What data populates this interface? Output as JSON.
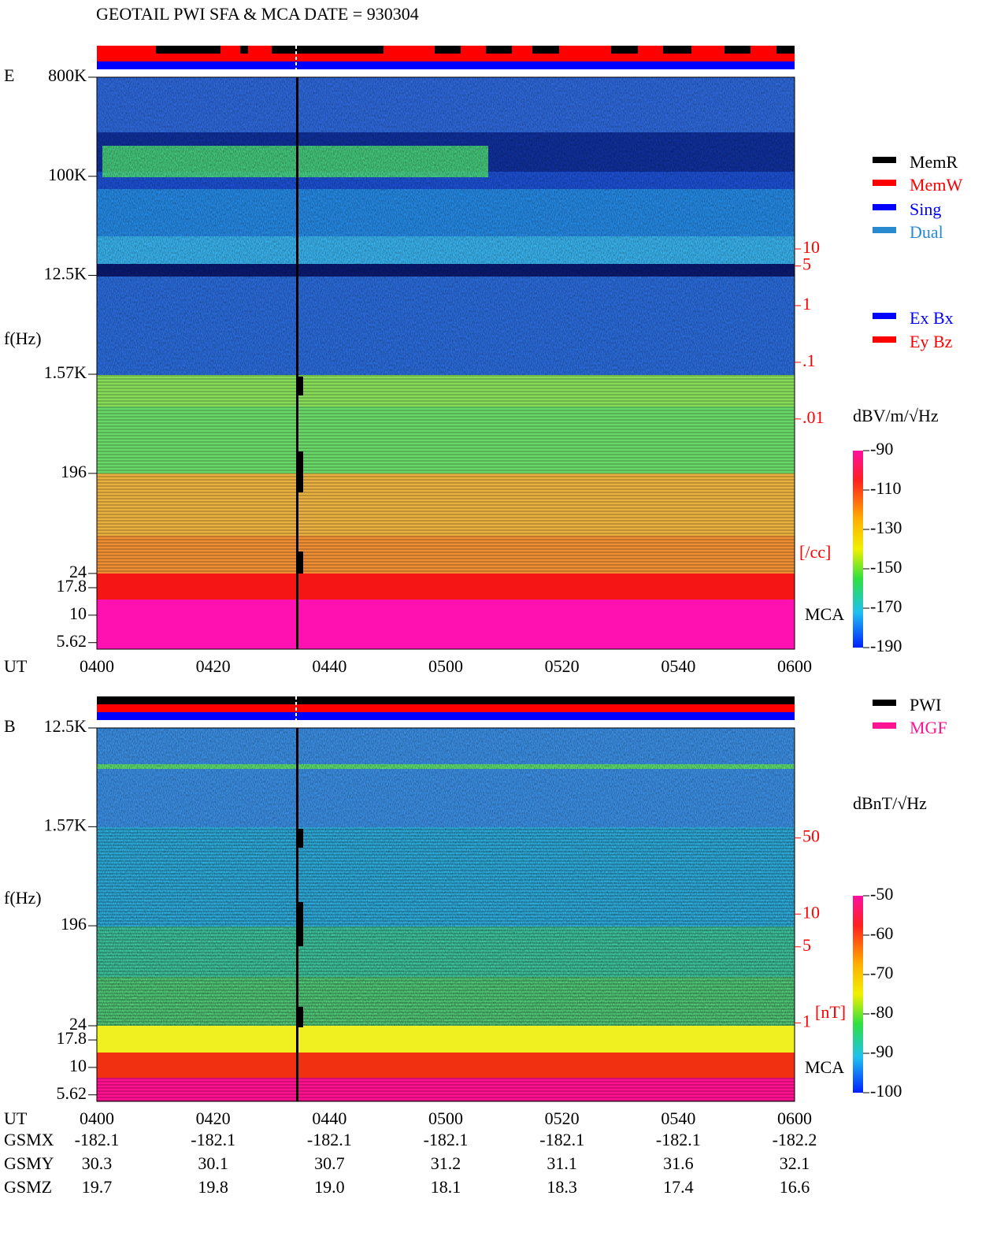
{
  "chart_data": [
    {
      "type": "spectrogram",
      "title": "GEOTAIL  PWI SFA & MCA   DATE = 930304",
      "panel_label": "E",
      "y_label": "f(Hz)",
      "x_label": "UT",
      "log_y": true,
      "ylim": [
        4.9,
        800000
      ],
      "yticks": [
        {
          "value": 800000,
          "label": "800K"
        },
        {
          "value": 100000,
          "label": "100K"
        },
        {
          "value": 12500,
          "label": "12.5K"
        },
        {
          "value": 1570,
          "label": "1.57K"
        },
        196,
        24,
        17.8,
        10,
        5.62
      ],
      "xticks": [
        "0400",
        "0420",
        "0440",
        "0500",
        "0520",
        "0540",
        "0600"
      ],
      "y2lim": [
        8.7e-07,
        10700
      ],
      "y2ticks": [
        10,
        5,
        1,
        {
          "value": 0.1,
          "label": ".1"
        },
        {
          "value": 0.01,
          "label": ".01"
        }
      ],
      "y2_label": "[/cc]",
      "mca_label": "MCA",
      "legend": [
        {
          "name": "MemR",
          "color": "#000000"
        },
        {
          "name": "MemW",
          "color": "#ff0000"
        },
        {
          "name": "Sing",
          "color": "#0000ff"
        },
        {
          "name": "Dual",
          "color": "#2a8ad0"
        }
      ],
      "legend2": [
        {
          "name": "Ex Bx",
          "color": "#0000ff"
        },
        {
          "name": "Ey Bz",
          "color": "#ff0000"
        }
      ],
      "colorbar": {
        "label": "dBV/m/√Hz",
        "lim": [
          -190,
          -90
        ],
        "ticks": [
          -90,
          -110,
          -130,
          -150,
          -170,
          -190
        ]
      }
    },
    {
      "type": "spectrogram",
      "panel_label": "B",
      "y_label": "f(Hz)",
      "x_label": "UT",
      "log_y": true,
      "ylim": [
        4.9,
        12500
      ],
      "yticks": [
        {
          "value": 12500,
          "label": "12.5K"
        },
        {
          "value": 1570,
          "label": "1.57K"
        },
        196,
        24,
        17.8,
        10,
        5.62
      ],
      "xticks": [
        "0400",
        "0420",
        "0440",
        "0500",
        "0520",
        "0540",
        "0600"
      ],
      "y2lim": [
        0.19,
        513
      ],
      "y2ticks": [
        50,
        10,
        5,
        1
      ],
      "y2_label": "[nT]",
      "mca_label": "MCA",
      "legend": [
        {
          "name": "PWI",
          "color": "#000000"
        },
        {
          "name": "MGF",
          "color": "#ff1493"
        }
      ],
      "colorbar": {
        "label": "dBnT/√Hz",
        "lim": [
          -100,
          -50
        ],
        "ticks": [
          -50,
          -60,
          -70,
          -80,
          -90,
          -100
        ]
      }
    }
  ],
  "orbit": {
    "rows": [
      {
        "name": "GSMX",
        "values": [
          "-182.1",
          "-182.1",
          "-182.1",
          "-182.1",
          "-182.1",
          "-182.1",
          "-182.2"
        ]
      },
      {
        "name": "GSMY",
        "values": [
          "30.3",
          "30.1",
          "30.7",
          "31.2",
          "31.1",
          "31.6",
          "32.1"
        ]
      },
      {
        "name": "GSMZ",
        "values": [
          "19.7",
          "19.8",
          "19.0",
          "18.1",
          "18.3",
          "17.4",
          "16.6"
        ]
      }
    ]
  }
}
